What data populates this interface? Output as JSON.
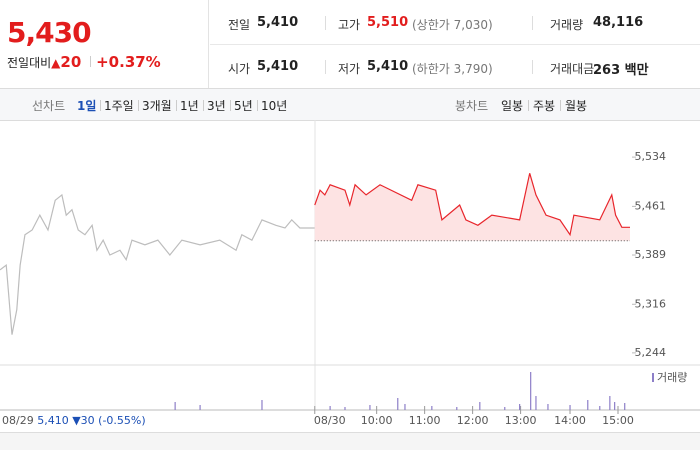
{
  "header": {
    "price": "5,430",
    "change_label": "전일대비",
    "change_symbol": "▲",
    "change": "20",
    "change_rate": "+0.37%",
    "stats": [
      {
        "label": "전일",
        "value": "5,410"
      },
      {
        "label": "고가",
        "value": "5,510",
        "note": "(상한가 7,030)"
      },
      {
        "label": "거래량",
        "value": "48,116"
      },
      {
        "label": "시가",
        "value": "5,410"
      },
      {
        "label": "저가",
        "value": "5,410",
        "note": "(하한가 3,790)"
      },
      {
        "label": "거래대금",
        "value": "263 백만"
      }
    ]
  },
  "tabs": {
    "line_label": "선차트",
    "line_items": [
      "1일",
      "1주일",
      "3개월",
      "1년",
      "3년",
      "5년",
      "10년"
    ],
    "active_index": 0,
    "candle_label": "봉차트",
    "candle_items": [
      "일봉",
      "주봉",
      "월봉"
    ]
  },
  "chart_data": {
    "type": "line",
    "series": [
      {
        "color": "#bdbdbd",
        "x": [
          0,
          0.13,
          0.25,
          0.35,
          0.42,
          0.52,
          0.67,
          0.83,
          1.0,
          1.15,
          1.29,
          1.38,
          1.5,
          1.63,
          1.77,
          1.92,
          2.02,
          2.15,
          2.29,
          2.5,
          2.63,
          2.75,
          3.02,
          3.29,
          3.54,
          3.79,
          4.17,
          4.58,
          4.92,
          5.04,
          5.25,
          5.46,
          5.75,
          5.94,
          6.08,
          6.25,
          6.56
        ],
        "values": [
          5367,
          5374,
          5271,
          5308,
          5374,
          5419,
          5426,
          5448,
          5426,
          5470,
          5478,
          5448,
          5456,
          5426,
          5419,
          5433,
          5396,
          5411,
          5389,
          5396,
          5382,
          5411,
          5404,
          5411,
          5389,
          5411,
          5404,
          5411,
          5396,
          5419,
          5411,
          5441,
          5433,
          5429,
          5441,
          5429,
          5429
        ]
      },
      {
        "color": "#e8262c",
        "fill": "#fde3e3",
        "x": [
          6.56,
          6.67,
          6.77,
          6.88,
          7.19,
          7.29,
          7.4,
          7.63,
          7.92,
          8.58,
          8.71,
          9.08,
          9.21,
          9.58,
          9.71,
          9.96,
          10.25,
          10.83,
          11.04,
          11.17,
          11.38,
          11.67,
          11.88,
          11.96,
          12.5,
          12.75,
          12.83,
          12.96,
          13.13
        ],
        "values": [
          5463,
          5485,
          5478,
          5493,
          5485,
          5463,
          5493,
          5478,
          5493,
          5470,
          5493,
          5485,
          5441,
          5463,
          5441,
          5433,
          5448,
          5441,
          5510,
          5478,
          5448,
          5441,
          5419,
          5448,
          5441,
          5478,
          5448,
          5430,
          5430
        ]
      }
    ],
    "baseline": 5410,
    "xlim": [
      0,
      13.13
    ],
    "xticks": [
      {
        "value": 6.56,
        "label": "08/30"
      },
      {
        "value": 7.85,
        "label": "10:00"
      },
      {
        "value": 8.85,
        "label": "11:00"
      },
      {
        "value": 9.85,
        "label": "12:00"
      },
      {
        "value": 10.85,
        "label": "13:00"
      },
      {
        "value": 11.88,
        "label": "14:00"
      },
      {
        "value": 12.88,
        "label": "15:00"
      }
    ],
    "ylim": [
      5229,
      5586
    ],
    "yticks": [
      {
        "value": 5534,
        "label": "5,534"
      },
      {
        "value": 5461,
        "label": "5,461"
      },
      {
        "value": 5389,
        "label": "5,389"
      },
      {
        "value": 5316,
        "label": "5,316"
      },
      {
        "value": 5244,
        "label": "5,244"
      }
    ],
    "volume": {
      "name": "거래량",
      "color": "#8d7fc8",
      "ylim": [
        0,
        42
      ],
      "x": [
        3.65,
        4.17,
        5.46,
        6.88,
        7.19,
        7.71,
        8.29,
        8.44,
        9.0,
        9.52,
        10.0,
        10.52,
        10.83,
        11.06,
        11.17,
        11.42,
        11.88,
        12.25,
        12.5,
        12.71,
        12.81,
        13.02
      ],
      "values": [
        8,
        5,
        10,
        4,
        3,
        5,
        12,
        6,
        4,
        3,
        8,
        3,
        6,
        38,
        14,
        6,
        5,
        10,
        4,
        14,
        8,
        7
      ]
    },
    "prev_day": {
      "date": "08/29",
      "close": "5,410",
      "change": "▼30",
      "change_rate": "(-0.55%)"
    }
  }
}
